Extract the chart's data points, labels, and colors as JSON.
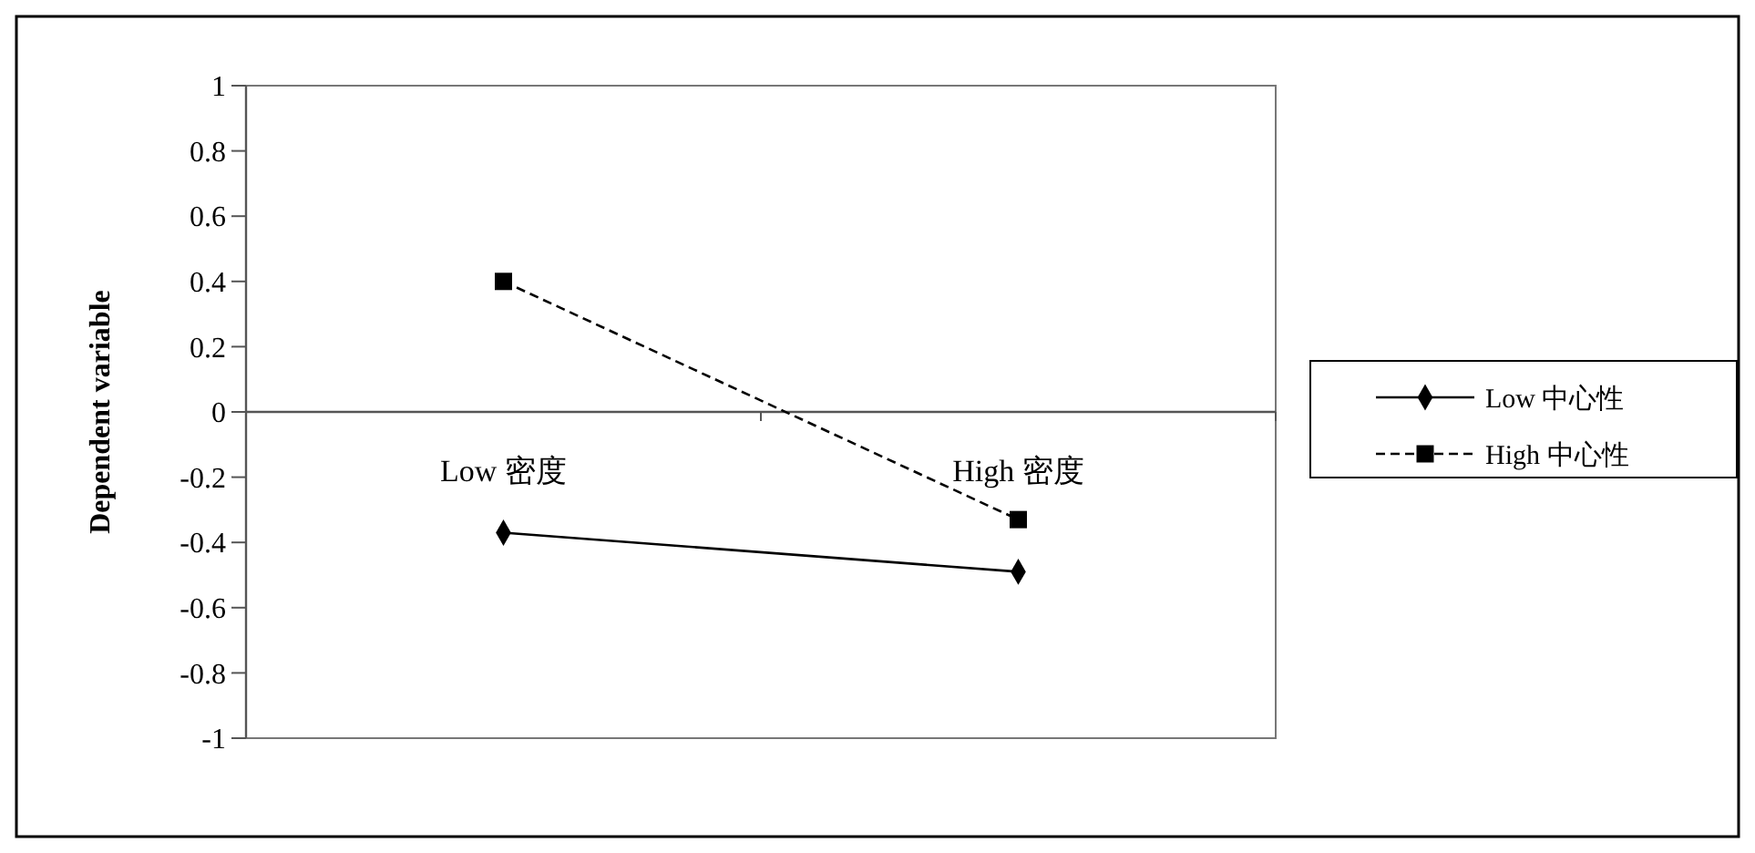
{
  "chart_data": {
    "type": "line",
    "ylabel": "Dependent variable",
    "categories": [
      "Low 密度",
      "High 密度"
    ],
    "ylim": [
      -1,
      1
    ],
    "yticks": [
      -1,
      -0.8,
      -0.6,
      -0.4,
      -0.2,
      0,
      0.2,
      0.4,
      0.6,
      0.8,
      1
    ],
    "grid": false,
    "legend": "right",
    "series": [
      {
        "name": "Low 中心性",
        "color": "#000000",
        "values": [
          -0.37,
          -0.49
        ],
        "marker": "diamond",
        "line_style": "solid"
      },
      {
        "name": "High 中心性",
        "color": "#000000",
        "values": [
          0.4,
          -0.33
        ],
        "marker": "square",
        "line_style": "dashed"
      }
    ]
  }
}
